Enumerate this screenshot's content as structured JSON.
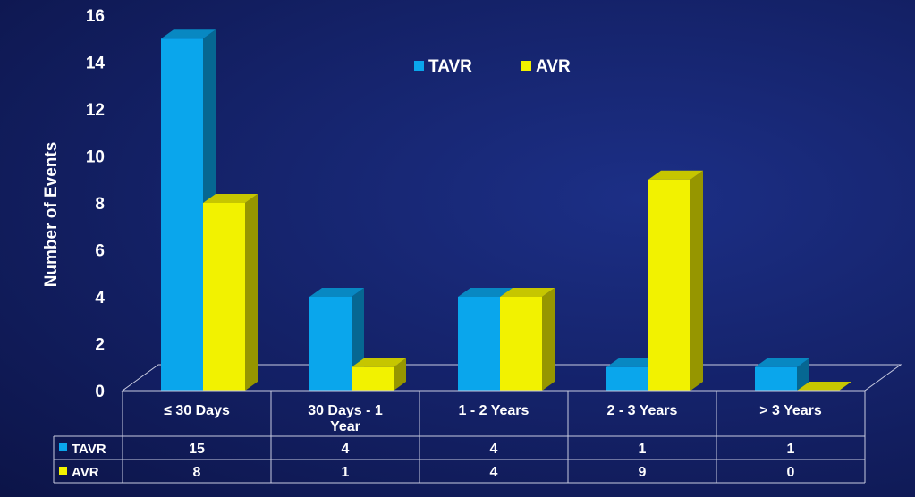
{
  "chart_data": {
    "type": "bar",
    "ylabel": "Number of Events",
    "ylim": [
      0,
      16
    ],
    "yticks": [
      0,
      2,
      4,
      6,
      8,
      10,
      12,
      14,
      16
    ],
    "categories": [
      [
        "≤ 30 Days"
      ],
      [
        "30 Days - 1",
        "Year"
      ],
      [
        "1 - 2 Years"
      ],
      [
        "2 - 3 Years"
      ],
      [
        "> 3 Years"
      ]
    ],
    "series": [
      {
        "name": "TAVR",
        "color": "#0aa6ec",
        "values": [
          15,
          4,
          4,
          1,
          1
        ]
      },
      {
        "name": "AVR",
        "color": "#f2f200",
        "values": [
          8,
          1,
          4,
          9,
          0
        ]
      }
    ],
    "legend_position": "top-center",
    "data_table": true,
    "grid": false
  }
}
